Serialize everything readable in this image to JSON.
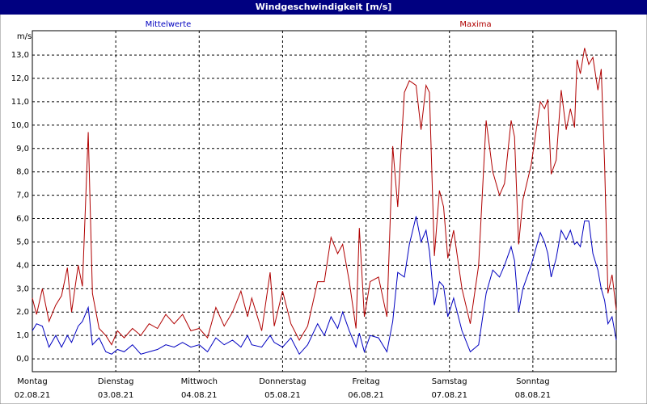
{
  "chart_data": {
    "type": "line",
    "title": "Windgeschwindigkeit [m/s]",
    "y_label": "m/s",
    "x": [
      0.0,
      0.05,
      0.12,
      0.2,
      0.28,
      0.35,
      0.42,
      0.47,
      0.55,
      0.6,
      0.67,
      0.72,
      0.8,
      0.88,
      0.95,
      1.02,
      1.1,
      1.2,
      1.3,
      1.4,
      1.5,
      1.6,
      1.7,
      1.8,
      1.9,
      2.0,
      2.1,
      2.2,
      2.3,
      2.4,
      2.5,
      2.58,
      2.63,
      2.75,
      2.85,
      2.9,
      3.0,
      3.1,
      3.2,
      3.3,
      3.42,
      3.5,
      3.58,
      3.66,
      3.72,
      3.8,
      3.88,
      3.92,
      3.98,
      4.05,
      4.15,
      4.25,
      4.32,
      4.38,
      4.46,
      4.52,
      4.6,
      4.66,
      4.72,
      4.76,
      4.82,
      4.88,
      4.93,
      4.98,
      5.05,
      5.15,
      5.25,
      5.35,
      5.44,
      5.52,
      5.6,
      5.66,
      5.74,
      5.78,
      5.83,
      5.88,
      5.98,
      6.09,
      6.14,
      6.18,
      6.22,
      6.28,
      6.34,
      6.4,
      6.45,
      6.5,
      6.53,
      6.57,
      6.62,
      6.67,
      6.72,
      6.78,
      6.82,
      6.86,
      6.9,
      6.95,
      7.0
    ],
    "series": [
      {
        "name": "Mittelwerte",
        "color": "#0000c0",
        "values": [
          1.2,
          1.5,
          1.4,
          0.5,
          1.0,
          0.5,
          1.0,
          0.7,
          1.4,
          1.6,
          2.2,
          0.6,
          0.9,
          0.3,
          0.2,
          0.4,
          0.3,
          0.6,
          0.2,
          0.3,
          0.4,
          0.6,
          0.5,
          0.7,
          0.5,
          0.6,
          0.3,
          0.9,
          0.6,
          0.8,
          0.5,
          1.0,
          0.6,
          0.5,
          1.0,
          0.7,
          0.5,
          0.9,
          0.2,
          0.6,
          1.5,
          1.0,
          1.8,
          1.3,
          2.0,
          1.2,
          0.5,
          1.1,
          0.3,
          1.0,
          0.9,
          0.3,
          1.6,
          3.7,
          3.5,
          4.9,
          6.1,
          5.0,
          5.5,
          4.6,
          2.3,
          3.3,
          3.1,
          1.8,
          2.6,
          1.2,
          0.3,
          0.6,
          2.8,
          3.8,
          3.5,
          4.0,
          4.8,
          4.2,
          2.0,
          3.0,
          4.0,
          5.4,
          5.0,
          4.5,
          3.5,
          4.3,
          5.5,
          5.1,
          5.5,
          4.9,
          5.0,
          4.8,
          5.9,
          5.9,
          4.5,
          3.8,
          3.0,
          2.5,
          1.5,
          1.8,
          0.8
        ]
      },
      {
        "name": "Maxima",
        "color": "#b00000",
        "values": [
          2.6,
          1.9,
          3.0,
          1.6,
          2.3,
          2.7,
          3.9,
          2.0,
          4.0,
          3.1,
          9.7,
          2.8,
          1.3,
          1.0,
          0.6,
          1.2,
          0.9,
          1.3,
          1.0,
          1.5,
          1.3,
          1.9,
          1.5,
          1.9,
          1.2,
          1.3,
          0.9,
          2.2,
          1.4,
          2.0,
          2.9,
          1.8,
          2.6,
          1.2,
          3.7,
          1.4,
          2.9,
          1.5,
          0.8,
          1.4,
          3.3,
          3.3,
          5.2,
          4.5,
          4.9,
          3.3,
          1.3,
          5.6,
          1.8,
          3.3,
          3.5,
          1.8,
          9.1,
          6.5,
          11.4,
          11.9,
          11.7,
          9.8,
          11.7,
          11.4,
          4.4,
          7.2,
          6.5,
          4.3,
          5.5,
          3.0,
          1.5,
          4.0,
          10.2,
          8.0,
          7.0,
          7.5,
          10.2,
          9.5,
          4.9,
          6.8,
          8.3,
          11.0,
          10.7,
          11.1,
          7.9,
          8.5,
          11.5,
          9.8,
          10.7,
          9.9,
          12.8,
          12.2,
          13.3,
          12.6,
          12.9,
          11.5,
          12.4,
          8.3,
          2.8,
          3.6,
          2.1
        ]
      }
    ],
    "xlim": [
      0,
      7
    ],
    "xticks": [
      {
        "value": 0,
        "label": "Montag"
      },
      {
        "value": 1,
        "label": "Dienstag"
      },
      {
        "value": 2,
        "label": "Mittwoch"
      },
      {
        "value": 3,
        "label": "Donnerstag"
      },
      {
        "value": 4,
        "label": "Freitag"
      },
      {
        "value": 5,
        "label": "Samstag"
      },
      {
        "value": 6,
        "label": "Sonntag"
      }
    ],
    "xtick_dates": [
      "02.08.21",
      "03.08.21",
      "04.08.21",
      "05.08.21",
      "06.08.21",
      "07.08.21",
      "08.08.21"
    ],
    "ylim": [
      -0.55,
      14.04
    ],
    "yticks": [
      {
        "value": 0,
        "label": "0,0"
      },
      {
        "value": 1,
        "label": "1,0"
      },
      {
        "value": 2,
        "label": "2,0"
      },
      {
        "value": 3,
        "label": "3,0"
      },
      {
        "value": 4,
        "label": "4,0"
      },
      {
        "value": 5,
        "label": "5,0"
      },
      {
        "value": 6,
        "label": "6,0"
      },
      {
        "value": 7,
        "label": "7,0"
      },
      {
        "value": 8,
        "label": "8,0"
      },
      {
        "value": 9,
        "label": "9,0"
      },
      {
        "value": 10,
        "label": "10,0"
      },
      {
        "value": 11,
        "label": "11,0"
      },
      {
        "value": 12,
        "label": "12,0"
      },
      {
        "value": 13,
        "label": "13,0"
      }
    ],
    "grid": true
  }
}
